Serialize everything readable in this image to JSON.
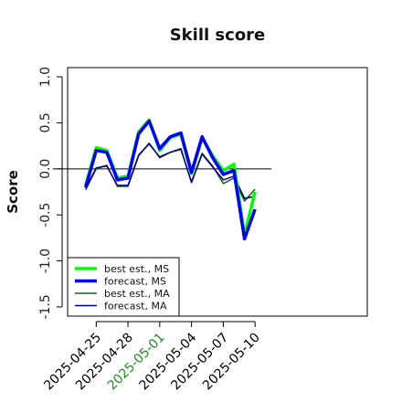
{
  "chart_data": {
    "type": "line",
    "title": "Skill score",
    "ylabel": "Score",
    "xlabel": "",
    "ylim": [
      -1.6,
      1.1
    ],
    "yticks": [
      -1.5,
      -1.0,
      -0.5,
      0.0,
      0.5,
      1.0
    ],
    "ytick_labels": [
      "-1.5",
      "-1.0",
      "-0.5",
      "0.0",
      "0.5",
      "1.0"
    ],
    "xlim": [
      -0.7,
      27.6
    ],
    "xticks": [
      2,
      5,
      8,
      11,
      14,
      17
    ],
    "xtick_labels": [
      "2025-04-25",
      "2025-04-28",
      "2025-05-01",
      "2025-05-04",
      "2025-05-07",
      "2025-05-10"
    ],
    "xtick_colors": [
      "#000000",
      "#000000",
      "#228B22",
      "#000000",
      "#000000",
      "#000000"
    ],
    "hline": 0,
    "grid": false,
    "legend_position": "bottom-left",
    "x": [
      1,
      2,
      3,
      4,
      5,
      6,
      7,
      8,
      9,
      10,
      11,
      12,
      13,
      14,
      15,
      16,
      17
    ],
    "series": [
      {
        "name": "best est., MS",
        "color": "#00ff00",
        "width": "thick",
        "values": [
          -0.18,
          0.23,
          0.2,
          -0.1,
          -0.08,
          0.4,
          0.53,
          0.2,
          0.34,
          0.38,
          -0.05,
          0.34,
          0.14,
          -0.02,
          0.05,
          -0.72,
          -0.25
        ]
      },
      {
        "name": "forecast, MS",
        "color": "#0000ff",
        "width": "thick",
        "values": [
          -0.2,
          0.2,
          0.18,
          -0.12,
          -0.1,
          0.38,
          0.52,
          0.22,
          0.35,
          0.39,
          -0.04,
          0.35,
          0.12,
          -0.06,
          -0.02,
          -0.76,
          -0.44
        ]
      },
      {
        "name": "best est., MA",
        "color": "#1a5e1a",
        "width": "thin",
        "values": [
          -0.23,
          0.0,
          0.04,
          -0.19,
          -0.19,
          0.14,
          0.28,
          0.12,
          0.18,
          0.21,
          -0.14,
          0.17,
          0.03,
          -0.16,
          -0.1,
          -0.35,
          -0.22
        ]
      },
      {
        "name": "forecast, MA",
        "color": "#000080",
        "width": "thin",
        "values": [
          -0.21,
          0.01,
          0.03,
          -0.18,
          -0.18,
          0.15,
          0.27,
          0.13,
          0.18,
          0.22,
          -0.15,
          0.16,
          0.02,
          -0.12,
          -0.08,
          -0.32,
          -0.3
        ]
      }
    ]
  }
}
